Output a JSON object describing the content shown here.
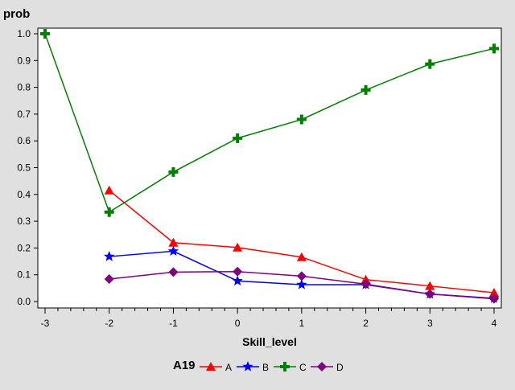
{
  "chart_data": {
    "type": "line",
    "ylabel": "prob",
    "xlabel": "Skill_level",
    "xlim": [
      -3,
      4
    ],
    "ylim": [
      0,
      1.0
    ],
    "x_ticks": [
      "-3",
      "-2",
      "-1",
      "0",
      "1",
      "2",
      "3",
      "4"
    ],
    "y_ticks": [
      "0.0",
      "0.1",
      "0.2",
      "0.3",
      "0.4",
      "0.5",
      "0.6",
      "0.7",
      "0.8",
      "0.9",
      "1.0"
    ],
    "grid": false,
    "legend": {
      "title": "A19",
      "placement": "bottom"
    },
    "series": [
      {
        "name": "A",
        "color": "#ff0000",
        "marker": "triangle",
        "x": [
          -2,
          -1,
          0,
          1,
          2,
          3,
          4
        ],
        "y": [
          0.415,
          0.22,
          0.202,
          0.166,
          0.082,
          0.058,
          0.033
        ]
      },
      {
        "name": "B",
        "color": "#0000ff",
        "marker": "star",
        "x": [
          -2,
          -1,
          0,
          1,
          2,
          3,
          4
        ],
        "y": [
          0.168,
          0.188,
          0.077,
          0.063,
          0.063,
          0.028,
          0.012
        ]
      },
      {
        "name": "C",
        "color": "#008000",
        "marker": "plus",
        "x": [
          -3,
          -2,
          -1,
          0,
          1,
          2,
          3,
          4
        ],
        "y": [
          1.0,
          0.334,
          0.484,
          0.61,
          0.68,
          0.79,
          0.887,
          0.945
        ]
      },
      {
        "name": "D",
        "color": "#800080",
        "marker": "diamond",
        "x": [
          -2,
          -1,
          0,
          1,
          2,
          3,
          4
        ],
        "y": [
          0.084,
          0.11,
          0.112,
          0.095,
          0.065,
          0.028,
          0.01
        ]
      }
    ]
  }
}
